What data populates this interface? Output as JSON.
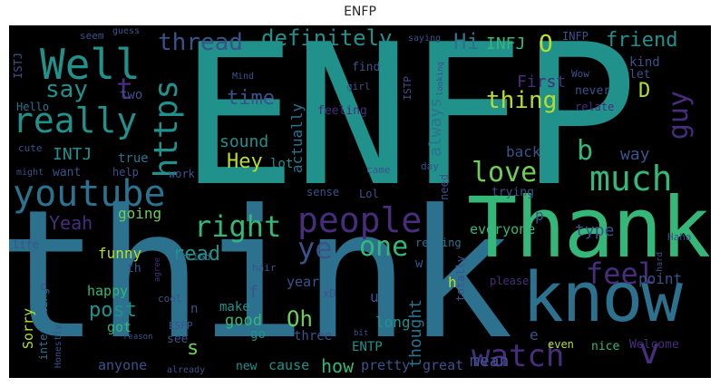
{
  "title": "ENFP",
  "words": {
    "enfp": "ENFP",
    "think": "think",
    "thank": "Thank",
    "know": "know",
    "youtube": "youtube",
    "really": "really",
    "well": "Well",
    "people": "people",
    "watch": "watch",
    "much": "much",
    "love": "love",
    "https": "https",
    "right": "right",
    "feel": "feel",
    "ye": "ye",
    "one": "one",
    "definitely": "definitely",
    "thread": "thread",
    "guy": "guy",
    "thing": "thing",
    "hi": "Hi",
    "intj": "INTJ",
    "infj": "INFJ",
    "friend": "friend",
    "say": "say",
    "time": "time",
    "hey": "Hey",
    "yeah": "Yeah",
    "read": "read",
    "oh": "Oh",
    "how": "how",
    "post": "post",
    "v": "v",
    "b": "b",
    "d": "D",
    "o": "O",
    "t": "t",
    "first": "First",
    "always": "always",
    "actually": "actually",
    "sound": "sound",
    "back": "back",
    "way": "way",
    "type": "type",
    "everyone": "everyone",
    "going": "going",
    "funny": "funny",
    "happy": "happy",
    "got": "got",
    "good": "good",
    "make": "make",
    "year": "year",
    "three": "three",
    "entp": "ENTP",
    "long": "long",
    "thought": "thought",
    "mean": "mean",
    "pretty": "pretty",
    "great": "great",
    "cause": "cause",
    "new": "new",
    "anyone": "anyone",
    "sorry": "Sorry",
    "interesting": "interesting",
    "point": "point",
    "please": "please",
    "nice": "nice",
    "welcome": "Welcome",
    "even": "even",
    "lot": "lot",
    "lol": "Lol",
    "sense": "sense",
    "reading": "reading",
    "totally": "totally",
    "need": "need",
    "trying": "trying",
    "true": "true",
    "want": "want",
    "help": "help",
    "work": "work",
    "cute": "cute",
    "might": "might",
    "hello": "Hello",
    "two": "two",
    "istj": "ISTJ",
    "istp": "ISTP",
    "infp": "INFP",
    "let": "let",
    "kind": "kind",
    "never": "never",
    "relate": "relate",
    "find": "find",
    "girl": "girl",
    "mind": "Mind",
    "feeling": "feeling",
    "seem": "seem",
    "guess": "guess",
    "saying": "saying",
    "haha": "Haha",
    "life": "life",
    "married": "married",
    "hair": "hair",
    "cool": "cool",
    "see": "see",
    "esfp": "ESFP",
    "go": "go",
    "xd": "xD",
    "honestly": "Honestly",
    "already": "already",
    "came": "came",
    "day": "day",
    "s": "s",
    "e": "e",
    "p": "p",
    "h": "h",
    "u": "u",
    "w": "w",
    "f": "f",
    "n": "n",
    "c": "c",
    "th": "th",
    "wow": "Wow",
    "agree": "agree",
    "looking": "looking",
    "reason": "reason",
    "bit": "bit",
    "hard": "hard"
  },
  "colors": {
    "background": "#000000",
    "teal": "#21918c",
    "green": "#35b779",
    "lightgreen": "#6ece58",
    "yellow": "#b5de2b",
    "purple": "#472d7b",
    "darkpurple": "#440154",
    "blue": "#3b528b",
    "steelblue": "#2c728e",
    "cyan": "#1f9e89"
  }
}
